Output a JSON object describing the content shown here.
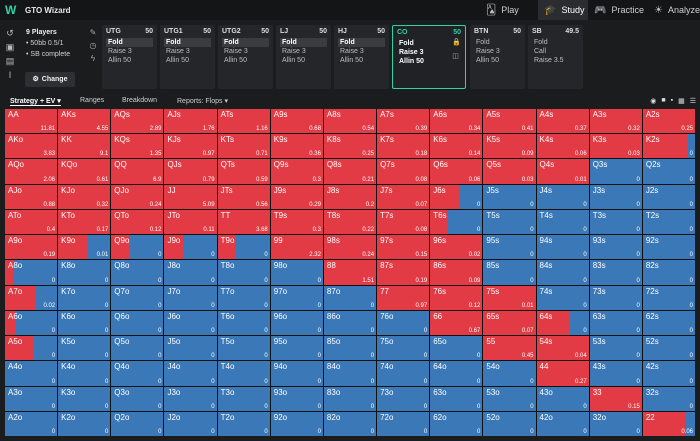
{
  "app": {
    "brand": "GTO Wizard"
  },
  "nav": [
    {
      "label": "Play",
      "icon": "play-icon",
      "glyph": "🂡"
    },
    {
      "label": "Study",
      "icon": "study-icon",
      "glyph": "🎓"
    },
    {
      "label": "Practice",
      "icon": "gamepad-icon",
      "glyph": "🎮"
    },
    {
      "label": "Analyze",
      "icon": "bulb-icon",
      "glyph": "☀"
    }
  ],
  "info": {
    "players": "9 Players",
    "stakes": "50bb 0.5/1",
    "status": "SB complete",
    "change_label": "Change"
  },
  "positions": [
    {
      "name": "UTG",
      "stack": "50",
      "actions": [
        "Fold",
        "Raise 3",
        "Allin 50"
      ],
      "selected": 0
    },
    {
      "name": "UTG1",
      "stack": "50",
      "actions": [
        "Fold",
        "Raise 3",
        "Allin 50"
      ],
      "selected": 0
    },
    {
      "name": "UTG2",
      "stack": "50",
      "actions": [
        "Fold",
        "Raise 3",
        "Allin 50"
      ],
      "selected": 0
    },
    {
      "name": "LJ",
      "stack": "50",
      "actions": [
        "Fold",
        "Raise 3",
        "Allin 50"
      ],
      "selected": 0
    },
    {
      "name": "HJ",
      "stack": "50",
      "actions": [
        "Fold",
        "Raise 3",
        "Allin 50"
      ],
      "selected": 0
    },
    {
      "name": "CO",
      "stack": "50",
      "actions": [
        "Fold",
        "Raise 3",
        "Allin 50"
      ],
      "selected": -1,
      "active": true
    },
    {
      "name": "BTN",
      "stack": "50",
      "actions": [
        "Fold",
        "Raise 3",
        "Allin 50"
      ],
      "selected": -1
    },
    {
      "name": "SB",
      "stack": "49.5",
      "actions": [
        "Fold",
        "Call",
        "Raise 3.5"
      ],
      "selected": -1
    }
  ],
  "toolbar": {
    "strategy": "Strategy + EV",
    "ranges": "Ranges",
    "breakdown": "Breakdown",
    "reports": "Reports: Flops"
  },
  "grid": {
    "rows": [
      [
        [
          "AA",
          "11.81",
          1
        ],
        [
          "AKs",
          "4.55",
          1
        ],
        [
          "AQs",
          "2.89",
          1
        ],
        [
          "AJs",
          "1.76",
          1
        ],
        [
          "ATs",
          "1.16",
          1
        ],
        [
          "A9s",
          "0.68",
          1
        ],
        [
          "A8s",
          "0.54",
          1
        ],
        [
          "A7s",
          "0.39",
          1
        ],
        [
          "A6s",
          "0.34",
          1
        ],
        [
          "A5s",
          "0.41",
          1
        ],
        [
          "A4s",
          "0.37",
          1
        ],
        [
          "A3s",
          "0.32",
          1
        ],
        [
          "A2s",
          "0.25",
          1
        ]
      ],
      [
        [
          "AKo",
          "3.83",
          1
        ],
        [
          "KK",
          "9.1",
          1
        ],
        [
          "KQs",
          "1.35",
          1
        ],
        [
          "KJs",
          "0.97",
          1
        ],
        [
          "KTs",
          "0.71",
          1
        ],
        [
          "K9s",
          "0.36",
          1
        ],
        [
          "K8s",
          "0.25",
          1
        ],
        [
          "K7s",
          "0.18",
          1
        ],
        [
          "K6s",
          "0.14",
          1
        ],
        [
          "K5s",
          "0.09",
          1
        ],
        [
          "K4s",
          "0.06",
          1
        ],
        [
          "K3s",
          "0.03",
          1
        ],
        [
          "K2s",
          "0",
          0.85
        ]
      ],
      [
        [
          "AQo",
          "2.06",
          1
        ],
        [
          "KQo",
          "0.61",
          1
        ],
        [
          "QQ",
          "6.9",
          1
        ],
        [
          "QJs",
          "0.79",
          1
        ],
        [
          "QTs",
          "0.59",
          1
        ],
        [
          "Q9s",
          "0.3",
          1
        ],
        [
          "Q8s",
          "0.21",
          1
        ],
        [
          "Q7s",
          "0.08",
          1
        ],
        [
          "Q6s",
          "0.06",
          1
        ],
        [
          "Q5s",
          "0.03",
          1
        ],
        [
          "Q4s",
          "0.01",
          1
        ],
        [
          "Q3s",
          "0",
          0
        ],
        [
          "Q2s",
          "0",
          0
        ]
      ],
      [
        [
          "AJo",
          "0.88",
          1
        ],
        [
          "KJo",
          "0.32",
          1
        ],
        [
          "QJo",
          "0.24",
          1
        ],
        [
          "JJ",
          "5.09",
          1
        ],
        [
          "JTs",
          "0.56",
          1
        ],
        [
          "J9s",
          "0.29",
          1
        ],
        [
          "J8s",
          "0.2",
          1
        ],
        [
          "J7s",
          "0.07",
          1
        ],
        [
          "J6s",
          "0",
          0.55
        ],
        [
          "J5s",
          "0",
          0
        ],
        [
          "J4s",
          "0",
          0
        ],
        [
          "J3s",
          "0",
          0
        ],
        [
          "J2s",
          "0",
          0
        ]
      ],
      [
        [
          "ATo",
          "0.4",
          1
        ],
        [
          "KTo",
          "0.17",
          1
        ],
        [
          "QTo",
          "0.12",
          1
        ],
        [
          "JTo",
          "0.11",
          1
        ],
        [
          "TT",
          "3.68",
          1
        ],
        [
          "T9s",
          "0.3",
          1
        ],
        [
          "T8s",
          "0.22",
          1
        ],
        [
          "T7s",
          "0.08",
          1
        ],
        [
          "T6s",
          "0",
          0.35
        ],
        [
          "T5s",
          "0",
          0
        ],
        [
          "T4s",
          "0",
          0
        ],
        [
          "T3s",
          "0",
          0
        ],
        [
          "T2s",
          "0",
          0
        ]
      ],
      [
        [
          "A9o",
          "0.19",
          1
        ],
        [
          "K9o",
          "0.01",
          0.55
        ],
        [
          "Q9o",
          "0",
          0.35
        ],
        [
          "J9o",
          "0",
          0.35
        ],
        [
          "T9o",
          "0",
          0.35
        ],
        [
          "99",
          "2.32",
          1
        ],
        [
          "98s",
          "0.24",
          1
        ],
        [
          "97s",
          "0.15",
          1
        ],
        [
          "96s",
          "0.02",
          1
        ],
        [
          "95s",
          "0",
          0
        ],
        [
          "94s",
          "0",
          0
        ],
        [
          "93s",
          "0",
          0
        ],
        [
          "92s",
          "0",
          0
        ]
      ],
      [
        [
          "A8o",
          "0",
          0.15
        ],
        [
          "K8o",
          "0",
          0
        ],
        [
          "Q8o",
          "0",
          0
        ],
        [
          "J8o",
          "0",
          0
        ],
        [
          "T8o",
          "0",
          0
        ],
        [
          "98o",
          "0",
          0
        ],
        [
          "88",
          "1.51",
          1
        ],
        [
          "87s",
          "0.19",
          1
        ],
        [
          "86s",
          "0.09",
          1
        ],
        [
          "85s",
          "0",
          0
        ],
        [
          "84s",
          "0",
          0
        ],
        [
          "83s",
          "0",
          0
        ],
        [
          "82s",
          "0",
          0
        ]
      ],
      [
        [
          "A7o",
          "0.02",
          0.6
        ],
        [
          "K7o",
          "0",
          0
        ],
        [
          "Q7o",
          "0",
          0
        ],
        [
          "J7o",
          "0",
          0
        ],
        [
          "T7o",
          "0",
          0
        ],
        [
          "97o",
          "0",
          0
        ],
        [
          "87o",
          "0",
          0
        ],
        [
          "77",
          "0.97",
          1
        ],
        [
          "76s",
          "0.12",
          1
        ],
        [
          "75s",
          "0.01",
          1
        ],
        [
          "74s",
          "0",
          0
        ],
        [
          "73s",
          "0",
          0
        ],
        [
          "72s",
          "0",
          0
        ]
      ],
      [
        [
          "A6o",
          "0",
          0.2
        ],
        [
          "K6o",
          "0",
          0
        ],
        [
          "Q6o",
          "0",
          0
        ],
        [
          "J6o",
          "0",
          0
        ],
        [
          "T6o",
          "0",
          0
        ],
        [
          "96o",
          "0",
          0
        ],
        [
          "86o",
          "0",
          0
        ],
        [
          "76o",
          "0",
          0
        ],
        [
          "66",
          "0.67",
          1
        ],
        [
          "65s",
          "0.07",
          1
        ],
        [
          "64s",
          "0",
          0.65
        ],
        [
          "63s",
          "0",
          0
        ],
        [
          "62s",
          "0",
          0
        ]
      ],
      [
        [
          "A5o",
          "0",
          0.55
        ],
        [
          "K5o",
          "0",
          0
        ],
        [
          "Q5o",
          "0",
          0
        ],
        [
          "J5o",
          "0",
          0
        ],
        [
          "T5o",
          "0",
          0
        ],
        [
          "95o",
          "0",
          0
        ],
        [
          "85o",
          "0",
          0
        ],
        [
          "75o",
          "0",
          0
        ],
        [
          "65o",
          "0",
          0
        ],
        [
          "55",
          "0.45",
          1
        ],
        [
          "54s",
          "0.04",
          1
        ],
        [
          "53s",
          "0",
          0
        ],
        [
          "52s",
          "0",
          0
        ]
      ],
      [
        [
          "A4o",
          "0",
          0
        ],
        [
          "K4o",
          "0",
          0
        ],
        [
          "Q4o",
          "0",
          0
        ],
        [
          "J4o",
          "0",
          0
        ],
        [
          "T4o",
          "0",
          0
        ],
        [
          "94o",
          "0",
          0
        ],
        [
          "84o",
          "0",
          0
        ],
        [
          "74o",
          "0",
          0
        ],
        [
          "64o",
          "0",
          0
        ],
        [
          "54o",
          "0",
          0
        ],
        [
          "44",
          "0.27",
          1
        ],
        [
          "43s",
          "0",
          0
        ],
        [
          "42s",
          "0",
          0
        ]
      ],
      [
        [
          "A3o",
          "0",
          0
        ],
        [
          "K3o",
          "0",
          0
        ],
        [
          "Q3o",
          "0",
          0
        ],
        [
          "J3o",
          "0",
          0
        ],
        [
          "T3o",
          "0",
          0
        ],
        [
          "93o",
          "0",
          0
        ],
        [
          "83o",
          "0",
          0
        ],
        [
          "73o",
          "0",
          0
        ],
        [
          "63o",
          "0",
          0
        ],
        [
          "53o",
          "0",
          0
        ],
        [
          "43o",
          "0",
          0
        ],
        [
          "33",
          "0.15",
          1
        ],
        [
          "32s",
          "0",
          0
        ]
      ],
      [
        [
          "A2o",
          "0",
          0
        ],
        [
          "K2o",
          "0",
          0
        ],
        [
          "Q2o",
          "0",
          0
        ],
        [
          "J2o",
          "0",
          0
        ],
        [
          "T2o",
          "0",
          0
        ],
        [
          "92o",
          "0",
          0
        ],
        [
          "82o",
          "0",
          0
        ],
        [
          "72o",
          "0",
          0
        ],
        [
          "62o",
          "0",
          0
        ],
        [
          "52o",
          "0",
          0
        ],
        [
          "42o",
          "0",
          0
        ],
        [
          "32o",
          "0",
          0
        ],
        [
          "22",
          "0.06",
          0.8
        ]
      ]
    ]
  }
}
